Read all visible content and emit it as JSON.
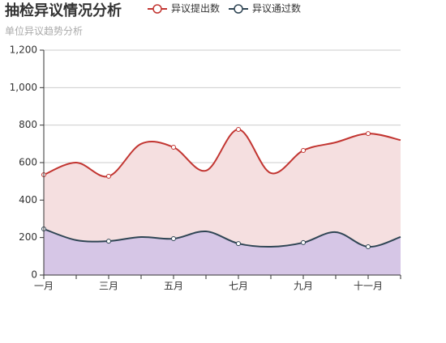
{
  "chart_data": {
    "type": "line",
    "title": "抽检异议情况分析",
    "subtitle": "单位异议趋势分析",
    "categories": [
      "一月",
      null,
      "三月",
      null,
      "五月",
      null,
      "七月",
      null,
      "九月",
      null,
      "十一月",
      null
    ],
    "series": [
      {
        "name": "异议提出数",
        "color": "#c23531",
        "area_color": "#f5dfe0",
        "values": [
          535,
          600,
          527,
          700,
          682,
          557,
          777,
          544,
          665,
          708,
          755,
          720
        ]
      },
      {
        "name": "异议通过数",
        "color": "#2f4554",
        "area_color": "#d6c6e6",
        "values": [
          246,
          186,
          181,
          203,
          194,
          233,
          168,
          151,
          173,
          229,
          151,
          203
        ]
      }
    ],
    "ylim": [
      0,
      1200
    ],
    "yticks": [
      0,
      200,
      400,
      600,
      800,
      {
        "value": 1000,
        "label": "1,000"
      },
      {
        "value": 1200,
        "label": "1,200"
      }
    ],
    "grid": true
  }
}
